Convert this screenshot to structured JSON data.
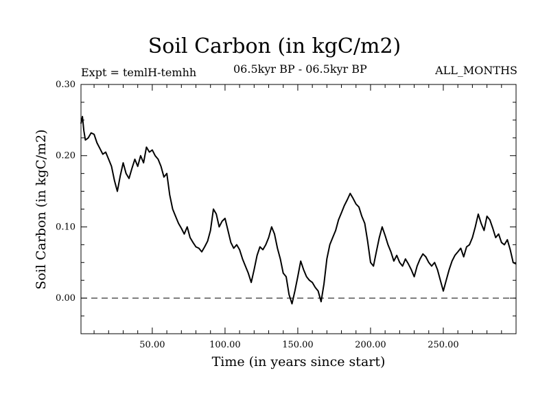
{
  "chart_data": {
    "type": "line",
    "title": "Soil Carbon (in kgC/m2)",
    "subtitle_left": "Expt = temlH-temhh",
    "subtitle_center": "06.5kyr BP - 06.5kyr BP",
    "subtitle_right": "ALL_MONTHS",
    "xlabel": "Time (in years since start)",
    "ylabel": "Soil Carbon (in kgC/m2)",
    "xlim": [
      1,
      300
    ],
    "ylim": [
      -0.05,
      0.3
    ],
    "x_ticks": [
      50,
      100,
      150,
      200,
      250
    ],
    "x_tick_labels": [
      "50.00",
      "100.00",
      "150.00",
      "200.00",
      "250.00"
    ],
    "y_ticks": [
      0.0,
      0.1,
      0.2,
      0.3
    ],
    "y_tick_labels": [
      "0.00",
      "0.10",
      "0.20",
      "0.30"
    ],
    "reference_line": {
      "y": 0.0,
      "style": "dashed"
    },
    "grid": false,
    "series": [
      {
        "color": "#000000",
        "points": [
          [
            1,
            0.245
          ],
          [
            2,
            0.255
          ],
          [
            3,
            0.235
          ],
          [
            4,
            0.222
          ],
          [
            6,
            0.225
          ],
          [
            8,
            0.232
          ],
          [
            10,
            0.23
          ],
          [
            12,
            0.218
          ],
          [
            14,
            0.21
          ],
          [
            16,
            0.202
          ],
          [
            18,
            0.205
          ],
          [
            20,
            0.195
          ],
          [
            22,
            0.185
          ],
          [
            24,
            0.165
          ],
          [
            26,
            0.15
          ],
          [
            28,
            0.172
          ],
          [
            30,
            0.19
          ],
          [
            32,
            0.175
          ],
          [
            34,
            0.168
          ],
          [
            36,
            0.182
          ],
          [
            38,
            0.195
          ],
          [
            40,
            0.185
          ],
          [
            42,
            0.2
          ],
          [
            44,
            0.19
          ],
          [
            46,
            0.212
          ],
          [
            48,
            0.205
          ],
          [
            50,
            0.208
          ],
          [
            52,
            0.2
          ],
          [
            54,
            0.195
          ],
          [
            56,
            0.185
          ],
          [
            58,
            0.17
          ],
          [
            60,
            0.175
          ],
          [
            62,
            0.145
          ],
          [
            64,
            0.125
          ],
          [
            66,
            0.115
          ],
          [
            68,
            0.105
          ],
          [
            70,
            0.098
          ],
          [
            72,
            0.09
          ],
          [
            74,
            0.1
          ],
          [
            76,
            0.085
          ],
          [
            78,
            0.078
          ],
          [
            80,
            0.072
          ],
          [
            82,
            0.07
          ],
          [
            84,
            0.065
          ],
          [
            86,
            0.072
          ],
          [
            88,
            0.08
          ],
          [
            90,
            0.095
          ],
          [
            92,
            0.125
          ],
          [
            94,
            0.118
          ],
          [
            96,
            0.1
          ],
          [
            98,
            0.108
          ],
          [
            100,
            0.112
          ],
          [
            102,
            0.095
          ],
          [
            104,
            0.078
          ],
          [
            106,
            0.07
          ],
          [
            108,
            0.075
          ],
          [
            110,
            0.068
          ],
          [
            112,
            0.055
          ],
          [
            114,
            0.045
          ],
          [
            116,
            0.035
          ],
          [
            118,
            0.022
          ],
          [
            120,
            0.04
          ],
          [
            122,
            0.06
          ],
          [
            124,
            0.072
          ],
          [
            126,
            0.068
          ],
          [
            128,
            0.075
          ],
          [
            130,
            0.085
          ],
          [
            132,
            0.1
          ],
          [
            134,
            0.09
          ],
          [
            136,
            0.07
          ],
          [
            138,
            0.055
          ],
          [
            140,
            0.035
          ],
          [
            142,
            0.03
          ],
          [
            144,
            0.005
          ],
          [
            146,
            -0.008
          ],
          [
            148,
            0.01
          ],
          [
            150,
            0.03
          ],
          [
            152,
            0.052
          ],
          [
            154,
            0.04
          ],
          [
            156,
            0.03
          ],
          [
            158,
            0.025
          ],
          [
            160,
            0.022
          ],
          [
            162,
            0.015
          ],
          [
            164,
            0.01
          ],
          [
            166,
            -0.005
          ],
          [
            168,
            0.02
          ],
          [
            170,
            0.055
          ],
          [
            172,
            0.075
          ],
          [
            174,
            0.085
          ],
          [
            176,
            0.095
          ],
          [
            178,
            0.11
          ],
          [
            180,
            0.12
          ],
          [
            182,
            0.13
          ],
          [
            184,
            0.138
          ],
          [
            186,
            0.147
          ],
          [
            188,
            0.14
          ],
          [
            190,
            0.132
          ],
          [
            192,
            0.128
          ],
          [
            194,
            0.115
          ],
          [
            196,
            0.105
          ],
          [
            198,
            0.08
          ],
          [
            200,
            0.05
          ],
          [
            202,
            0.045
          ],
          [
            204,
            0.065
          ],
          [
            206,
            0.085
          ],
          [
            208,
            0.1
          ],
          [
            210,
            0.088
          ],
          [
            212,
            0.075
          ],
          [
            214,
            0.065
          ],
          [
            216,
            0.052
          ],
          [
            218,
            0.06
          ],
          [
            220,
            0.05
          ],
          [
            222,
            0.045
          ],
          [
            224,
            0.055
          ],
          [
            226,
            0.048
          ],
          [
            228,
            0.04
          ],
          [
            230,
            0.03
          ],
          [
            232,
            0.045
          ],
          [
            234,
            0.055
          ],
          [
            236,
            0.062
          ],
          [
            238,
            0.058
          ],
          [
            240,
            0.05
          ],
          [
            242,
            0.045
          ],
          [
            244,
            0.05
          ],
          [
            246,
            0.04
          ],
          [
            248,
            0.025
          ],
          [
            250,
            0.01
          ],
          [
            252,
            0.025
          ],
          [
            254,
            0.04
          ],
          [
            256,
            0.052
          ],
          [
            258,
            0.06
          ],
          [
            260,
            0.065
          ],
          [
            262,
            0.07
          ],
          [
            264,
            0.058
          ],
          [
            266,
            0.072
          ],
          [
            268,
            0.075
          ],
          [
            270,
            0.085
          ],
          [
            272,
            0.1
          ],
          [
            274,
            0.118
          ],
          [
            276,
            0.105
          ],
          [
            278,
            0.095
          ],
          [
            280,
            0.115
          ],
          [
            282,
            0.11
          ],
          [
            284,
            0.098
          ],
          [
            286,
            0.085
          ],
          [
            288,
            0.09
          ],
          [
            290,
            0.078
          ],
          [
            292,
            0.075
          ],
          [
            294,
            0.082
          ],
          [
            296,
            0.068
          ],
          [
            298,
            0.05
          ],
          [
            300,
            0.048
          ]
        ]
      }
    ]
  }
}
